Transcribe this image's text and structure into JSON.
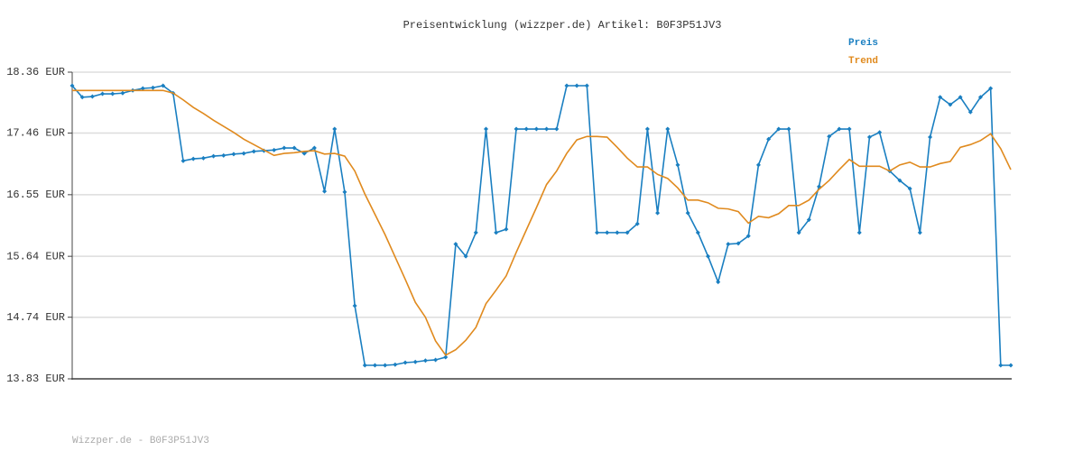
{
  "chart_data": {
    "type": "line",
    "title": "Preisentwicklung (wizzper.de) Artikel: B0F3P51JV3",
    "footer": "Wizzper.de - B0F3P51JV3",
    "ylim": [
      13.83,
      18.36
    ],
    "yticks": [
      {
        "value": 13.83,
        "label": "13.83 EUR"
      },
      {
        "value": 14.74,
        "label": "14.74 EUR"
      },
      {
        "value": 15.64,
        "label": "15.64 EUR"
      },
      {
        "value": 16.55,
        "label": "16.55 EUR"
      },
      {
        "value": 17.46,
        "label": "17.46 EUR"
      },
      {
        "value": 18.36,
        "label": "18.36 EUR"
      }
    ],
    "grid": true,
    "series": [
      {
        "name": "Preis",
        "color": "#1a7fc1",
        "markers": true,
        "values": [
          18.16,
          17.99,
          18.0,
          18.04,
          18.04,
          18.05,
          18.09,
          18.12,
          18.13,
          18.16,
          18.05,
          17.05,
          17.08,
          17.09,
          17.12,
          17.13,
          17.15,
          17.16,
          17.19,
          17.2,
          17.21,
          17.24,
          17.24,
          17.16,
          17.24,
          16.6,
          17.52,
          16.59,
          14.91,
          14.03,
          14.03,
          14.03,
          14.04,
          14.07,
          14.08,
          14.1,
          14.11,
          14.15,
          15.82,
          15.64,
          15.99,
          17.52,
          15.99,
          16.04,
          17.52,
          17.52,
          17.52,
          17.52,
          17.52,
          18.16,
          18.16,
          18.16,
          15.99,
          15.99,
          15.99,
          15.99,
          16.12,
          17.52,
          16.28,
          17.52,
          16.99,
          16.28,
          15.99,
          15.64,
          15.26,
          15.82,
          15.83,
          15.94,
          16.99,
          17.37,
          17.52,
          17.52,
          15.99,
          16.18,
          16.67,
          17.41,
          17.52,
          17.52,
          15.99,
          17.4,
          17.47,
          16.9,
          16.76,
          16.64,
          15.99,
          17.4,
          17.99,
          17.88,
          17.99,
          17.77,
          17.99,
          18.12,
          14.03,
          14.03
        ]
      },
      {
        "name": "Trend",
        "color": "#e08a1e",
        "markers": false,
        "values": [
          18.09,
          18.09,
          18.09,
          18.09,
          18.09,
          18.09,
          18.09,
          18.09,
          18.09,
          18.09,
          18.05,
          17.95,
          17.84,
          17.75,
          17.65,
          17.56,
          17.47,
          17.37,
          17.29,
          17.21,
          17.13,
          17.16,
          17.17,
          17.19,
          17.2,
          17.15,
          17.16,
          17.12,
          16.9,
          16.56,
          16.26,
          15.96,
          15.63,
          15.3,
          14.96,
          14.74,
          14.39,
          14.18,
          14.26,
          14.4,
          14.59,
          14.94,
          15.14,
          15.35,
          15.7,
          16.03,
          16.36,
          16.7,
          16.9,
          17.16,
          17.36,
          17.41,
          17.41,
          17.4,
          17.25,
          17.09,
          16.96,
          16.96,
          16.85,
          16.79,
          16.65,
          16.47,
          16.47,
          16.43,
          16.35,
          16.34,
          16.3,
          16.13,
          16.23,
          16.21,
          16.27,
          16.39,
          16.39,
          16.47,
          16.63,
          16.76,
          16.92,
          17.07,
          16.97,
          16.97,
          16.97,
          16.9,
          16.99,
          17.03,
          16.96,
          16.96,
          17.01,
          17.04,
          17.25,
          17.29,
          17.35,
          17.45,
          17.23,
          16.92
        ]
      }
    ]
  }
}
